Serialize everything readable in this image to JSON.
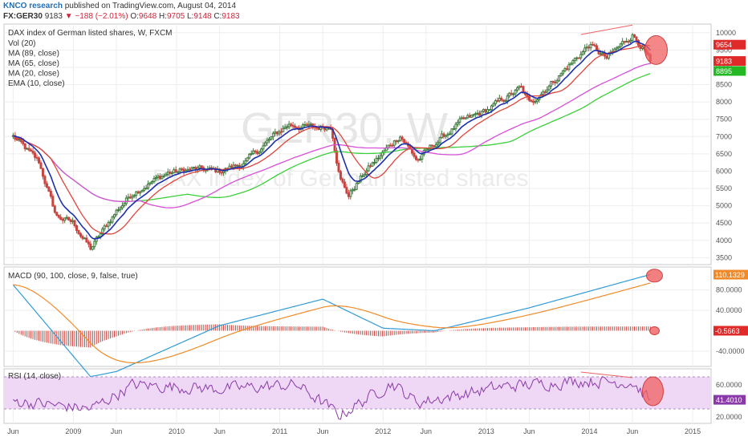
{
  "header": {
    "brand": "KNCO research",
    "published": "published on TradingView.com, August 04, 2014",
    "symbol": "FX:GER30",
    "last": "9183",
    "arrow": "▼",
    "change": "−188 (−2.01%)",
    "o_label": "O:",
    "o_value": "9648",
    "h_label": "H:",
    "h_value": "9705",
    "l_label": "L:",
    "l_value": "9148",
    "c_label": "C:",
    "c_value": "9183"
  },
  "watermark": {
    "symbol": "GER30, W",
    "name": "DAX index of German listed shares"
  },
  "legend": {
    "title": "DAX index of German listed shares, W, FXCM",
    "items": [
      "Vol (20)",
      "MA (89, close)",
      "MA (65, close)",
      "MA (20, close)",
      "EMA (10, close)"
    ]
  },
  "macd_label": "MACD (90, 100, close, 9, false, true)",
  "rsi_label": "RSI (14, close)",
  "x_ticks": [
    "Jun",
    "2009",
    "Jun",
    "2010",
    "Jun",
    "2011",
    "Jun",
    "2012",
    "Jun",
    "2013",
    "Jun",
    "2014",
    "Jun",
    "2015"
  ],
  "price_ticks": [
    "10000",
    "9500",
    "9000",
    "8500",
    "8000",
    "7500",
    "7000",
    "6500",
    "6000",
    "5500",
    "5000",
    "4500",
    "4000",
    "3500"
  ],
  "price_badges": [
    "9654",
    "9183",
    "8895"
  ],
  "macd_ticks": [
    "80.0000",
    "40.0000",
    "-40.0000"
  ],
  "macd_badges": [
    "110.1329",
    "-0.5663"
  ],
  "rsi_ticks": [
    "60.0000",
    "20.0000"
  ],
  "rsi_badge": "41.4010",
  "colors": {
    "candle_up": "#3d7a3d",
    "candle_down": "#c8453f",
    "ema10": "#1b2fb0",
    "ma20": "#e0443a",
    "ma65": "#d84fd8",
    "ma89": "#3ccf3c",
    "macd": "#2f9ad8",
    "signal": "#f08a28",
    "histogram": "#c8453f",
    "rsi": "#8a3aa8",
    "rsi_band": "#eed8f5",
    "highlight": "#f06060"
  },
  "chart_data": {
    "type": "candlestick",
    "title": "DAX index of German listed shares, W, FXCM",
    "x_start": "2008-06",
    "x_end": "2015-03",
    "price_range": [
      3300,
      10250
    ],
    "weekly_close_waypoints": [
      [
        "2008-06",
        7000
      ],
      [
        "2008-09",
        6250
      ],
      [
        "2008-11",
        4700
      ],
      [
        "2009-01",
        4500
      ],
      [
        "2009-03",
        3750
      ],
      [
        "2009-06",
        4850
      ],
      [
        "2009-08",
        5400
      ],
      [
        "2009-12",
        5950
      ],
      [
        "2010-03",
        6050
      ],
      [
        "2010-06",
        6000
      ],
      [
        "2010-09",
        6250
      ],
      [
        "2010-12",
        6950
      ],
      [
        "2011-02",
        7350
      ],
      [
        "2011-05",
        7250
      ],
      [
        "2011-07",
        7300
      ],
      [
        "2011-08",
        5800
      ],
      [
        "2011-09",
        5300
      ],
      [
        "2011-11",
        6000
      ],
      [
        "2012-03",
        7050
      ],
      [
        "2012-05",
        6300
      ],
      [
        "2012-07",
        6800
      ],
      [
        "2012-10",
        7400
      ],
      [
        "2013-01",
        7750
      ],
      [
        "2013-05",
        8400
      ],
      [
        "2013-06",
        7950
      ],
      [
        "2013-09",
        8650
      ],
      [
        "2013-12",
        9400
      ],
      [
        "2014-01",
        9650
      ],
      [
        "2014-03",
        9250
      ],
      [
        "2014-06",
        9950
      ],
      [
        "2014-07",
        9650
      ],
      [
        "2014-08",
        9183
      ]
    ],
    "indicators": [
      {
        "name": "EMA (10, close)",
        "color": "#1b2fb0"
      },
      {
        "name": "MA (20, close)",
        "color": "#e0443a"
      },
      {
        "name": "MA (65, close)",
        "color": "#d84fd8"
      },
      {
        "name": "MA (89, close)",
        "color": "#3ccf3c"
      }
    ],
    "macd": {
      "name": "MACD (90, 100, close, 9, false, true)",
      "last_macd": 110.1329,
      "last_histogram": -0.5663,
      "waypoints": [
        [
          "2008-06",
          90
        ],
        [
          "2009-03",
          -90
        ],
        [
          "2009-06",
          -80
        ],
        [
          "2010-06",
          10
        ],
        [
          "2011-06",
          62
        ],
        [
          "2012-01",
          5
        ],
        [
          "2012-07",
          0
        ],
        [
          "2013-06",
          45
        ],
        [
          "2014-08",
          110
        ]
      ]
    },
    "rsi": {
      "name": "RSI (14, close)",
      "last": 41.401,
      "band": [
        30,
        70
      ],
      "waypoints": [
        [
          "2008-06",
          40
        ],
        [
          "2009-03",
          30
        ],
        [
          "2009-08",
          60
        ],
        [
          "2010-06",
          55
        ],
        [
          "2011-03",
          60
        ],
        [
          "2011-08",
          22
        ],
        [
          "2012-02",
          62
        ],
        [
          "2012-05",
          38
        ],
        [
          "2013-03",
          58
        ],
        [
          "2013-12",
          65
        ],
        [
          "2014-06",
          63
        ],
        [
          "2014-08",
          41
        ]
      ]
    }
  }
}
